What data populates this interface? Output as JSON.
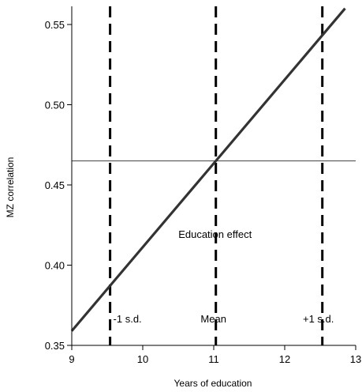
{
  "chart_data": {
    "type": "line",
    "title": "",
    "xlabel": "Years of education",
    "ylabel": "MZ correlation",
    "xlim": [
      9,
      13
    ],
    "ylim": [
      0.35,
      0.56
    ],
    "x_ticks": [
      9,
      10,
      11,
      12,
      13
    ],
    "x_tick_labels": [
      "9",
      "10",
      "11",
      "12",
      "13"
    ],
    "y_ticks": [
      0.35,
      0.4,
      0.45,
      0.5,
      0.55
    ],
    "y_tick_labels": [
      "0.35",
      "0.40",
      "0.45",
      "0.50",
      "0.55"
    ],
    "grid": false,
    "series": [
      {
        "name": "Education effect",
        "x": [
          9,
          12.85
        ],
        "y": [
          0.359,
          0.56
        ],
        "color": "#333333"
      }
    ],
    "reference_lines": {
      "horizontal": [
        {
          "y": 0.465,
          "color": "#555555",
          "style": "solid"
        }
      ],
      "vertical": [
        {
          "x": 9.54,
          "label": "-1 s.d.",
          "style": "dashed"
        },
        {
          "x": 11.03,
          "label": "Mean",
          "style": "dashed"
        },
        {
          "x": 12.53,
          "label": "+1 s.d.",
          "style": "dashed"
        }
      ]
    },
    "annotations": [
      {
        "text": "Education effect",
        "x": 11.03,
        "y": 0.418
      }
    ]
  }
}
